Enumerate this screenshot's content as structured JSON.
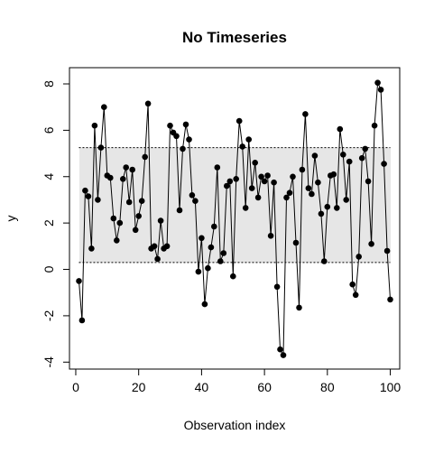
{
  "chart_data": {
    "type": "line",
    "title": "No Timeseries",
    "xlabel": "Observation index",
    "ylabel": "y",
    "xlim": [
      -2,
      103
    ],
    "ylim": [
      -4.3,
      8.7
    ],
    "x_ticks": [
      0,
      20,
      40,
      60,
      80,
      100
    ],
    "y_ticks": [
      -4,
      -2,
      0,
      2,
      4,
      6,
      8
    ],
    "band": {
      "lower": 0.3,
      "upper": 5.25,
      "fill": "#e6e6e6",
      "line_style": "dotted"
    },
    "grid": false,
    "legend": "none",
    "series": [
      {
        "marker": "filled-circle",
        "color": "#000000",
        "x": [
          1,
          2,
          3,
          4,
          5,
          6,
          7,
          8,
          9,
          10,
          11,
          12,
          13,
          14,
          15,
          16,
          17,
          18,
          19,
          20,
          21,
          22,
          23,
          24,
          25,
          26,
          27,
          28,
          29,
          30,
          31,
          32,
          33,
          34,
          35,
          36,
          37,
          38,
          39,
          40,
          41,
          42,
          43,
          44,
          45,
          46,
          47,
          48,
          49,
          50,
          51,
          52,
          53,
          54,
          55,
          56,
          57,
          58,
          59,
          60,
          61,
          62,
          63,
          64,
          65,
          66,
          67,
          68,
          69,
          70,
          71,
          72,
          73,
          74,
          75,
          76,
          77,
          78,
          79,
          80,
          81,
          82,
          83,
          84,
          85,
          86,
          87,
          88,
          89,
          90,
          91,
          92,
          93,
          94,
          95,
          96,
          97,
          98,
          99,
          100
        ],
        "y": [
          -0.5,
          -2.2,
          3.4,
          3.15,
          0.9,
          6.2,
          3.0,
          5.25,
          7.0,
          4.05,
          3.95,
          2.2,
          1.25,
          2.0,
          3.9,
          4.4,
          2.9,
          4.3,
          1.7,
          2.3,
          2.95,
          4.85,
          7.15,
          0.9,
          1.0,
          0.45,
          2.1,
          0.9,
          1.0,
          6.2,
          5.9,
          5.75,
          2.55,
          5.2,
          6.25,
          5.6,
          3.2,
          2.95,
          -0.1,
          1.35,
          -1.5,
          0.05,
          0.95,
          1.85,
          4.4,
          0.35,
          0.7,
          3.6,
          3.8,
          -0.3,
          3.9,
          6.4,
          5.3,
          2.65,
          5.6,
          3.5,
          4.6,
          3.1,
          4.0,
          3.8,
          4.05,
          1.45,
          3.75,
          -0.75,
          -3.45,
          -3.7,
          3.1,
          3.3,
          4.0,
          1.15,
          -1.65,
          4.3,
          6.7,
          3.5,
          3.25,
          4.9,
          3.75,
          2.4,
          0.35,
          2.7,
          4.05,
          4.1,
          2.65,
          6.05,
          4.95,
          3.0,
          4.65,
          -0.65,
          -1.1,
          0.55,
          4.8,
          5.2,
          3.8,
          1.1,
          6.2,
          8.05,
          7.75,
          4.55,
          0.8,
          -1.3
        ]
      }
    ]
  }
}
